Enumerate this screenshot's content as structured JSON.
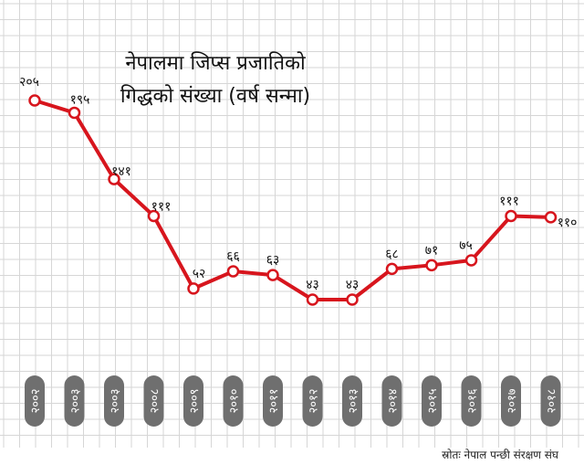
{
  "chart_data": {
    "type": "line",
    "title_lines": [
      "नेपालमा जिप्स प्रजातिको",
      "गिद्धको संख्या (वर्ष सन्मा)"
    ],
    "source": "स्रोतः नेपाल पन्छी संरक्षण संघ",
    "categories": [
      "२००२",
      "२००३",
      "२००३",
      "२००८",
      "२००९",
      "२०१०",
      "२०११",
      "२०१२",
      "२०१३",
      "२०१४",
      "२०१५",
      "२०१६",
      "२०१७",
      "२०१८"
    ],
    "values": [
      205,
      195,
      141,
      111,
      52,
      66,
      63,
      43,
      43,
      68,
      71,
      75,
      111,
      110
    ],
    "value_labels": [
      "२०५",
      "१९५",
      "१४१",
      "१११",
      "५२",
      "६६",
      "६३",
      "४३",
      "४३",
      "६८",
      "७१",
      "७५",
      "१११",
      "११०"
    ],
    "grid": true,
    "line_color": "#d7151d"
  }
}
